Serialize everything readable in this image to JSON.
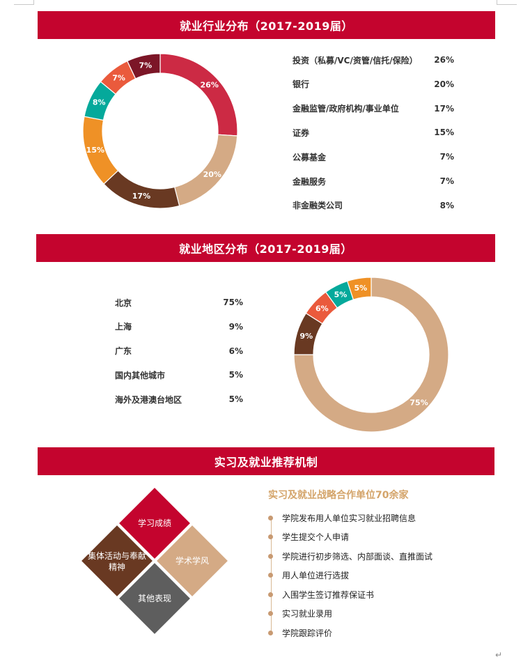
{
  "colors": {
    "banner": "#c4042e",
    "crimson": "#cc2a44",
    "tan": "#d4aa85",
    "brown": "#693922",
    "orange": "#ef9126",
    "teal": "#05a99b",
    "coral": "#ea5a3c",
    "maroon": "#7c1627",
    "gray": "#5e5e5e",
    "gold_text": "#d4a46a"
  },
  "industry": {
    "title": "就业行业分布（2017-2019届）",
    "items": [
      {
        "label": "投资（私募/VC/资管/信托/保险）",
        "value": "26%"
      },
      {
        "label": "银行",
        "value": "20%"
      },
      {
        "label": "金融监管/政府机构/事业单位",
        "value": "17%"
      },
      {
        "label": "证券",
        "value": "15%"
      },
      {
        "label": "公募基金",
        "value": "7%"
      },
      {
        "label": "金融服务",
        "value": "7%"
      },
      {
        "label": "非金融类公司",
        "value": "8%"
      }
    ]
  },
  "region": {
    "title": "就业地区分布（2017-2019届）",
    "items": [
      {
        "label": "北京",
        "value": "75%"
      },
      {
        "label": "上海",
        "value": "9%"
      },
      {
        "label": "广东",
        "value": "6%"
      },
      {
        "label": "国内其他城市",
        "value": "5%"
      },
      {
        "label": "海外及港澳台地区",
        "value": "5%"
      }
    ]
  },
  "chart_data": [
    {
      "type": "pie",
      "donut": true,
      "slices": [
        {
          "label": "26%",
          "value": 26,
          "color": "#cc2a44"
        },
        {
          "label": "20%",
          "value": 20,
          "color": "#d4aa85"
        },
        {
          "label": "17%",
          "value": 17,
          "color": "#693922"
        },
        {
          "label": "15%",
          "value": 15,
          "color": "#ef9126"
        },
        {
          "label": "8%",
          "value": 8,
          "color": "#05a99b"
        },
        {
          "label": "7%",
          "value": 7,
          "color": "#ea5a3c"
        },
        {
          "label": "7%",
          "value": 7,
          "color": "#7c1627"
        }
      ]
    },
    {
      "type": "pie",
      "donut": true,
      "slices": [
        {
          "label": "75%",
          "value": 75,
          "color": "#d4aa85"
        },
        {
          "label": "9%",
          "value": 9,
          "color": "#693922"
        },
        {
          "label": "6%",
          "value": 6,
          "color": "#ea5a3c"
        },
        {
          "label": "5%",
          "value": 5,
          "color": "#05a99b"
        },
        {
          "label": "5%",
          "value": 5,
          "color": "#ef9126"
        }
      ]
    }
  ],
  "mechanism": {
    "title": "实习及就业推荐机制",
    "diamonds": {
      "top": "学习成绩",
      "left": "集体活动与奉献精神",
      "right": "学术学风",
      "bottom": "其他表现"
    },
    "subtitle": "实习及就业战略合作单位70余家",
    "steps": [
      "学院发布用人单位实习就业招聘信息",
      "学生提交个人申请",
      "学院进行初步筛选、内部面谈、直推面试",
      "用人单位进行选拔",
      "入围学生签订推荐保证书",
      "实习就业录用",
      "学院跟踪评价"
    ]
  }
}
